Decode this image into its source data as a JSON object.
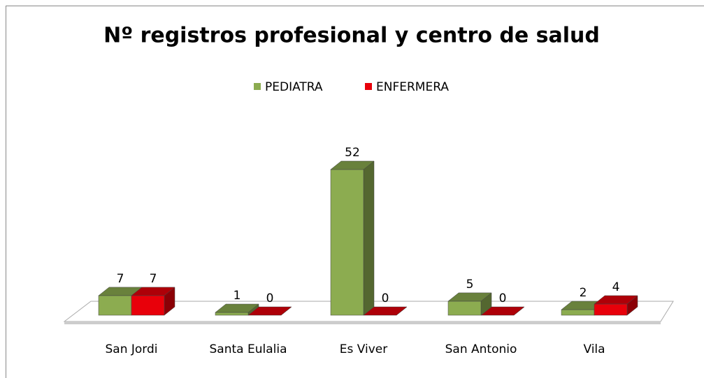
{
  "chart_data": {
    "type": "bar3d",
    "title": "Nº registros profesional y centro de salud",
    "categories": [
      "San Jordi",
      "Santa Eulalia",
      "Es Viver",
      "San Antonio",
      "Vila"
    ],
    "series": [
      {
        "name": "PEDIATRA",
        "color": "#8cac50",
        "values": [
          7,
          1,
          52,
          5,
          2
        ]
      },
      {
        "name": "ENFERMERA",
        "color": "#e8000a",
        "values": [
          7,
          0,
          0,
          0,
          4
        ]
      }
    ],
    "legend": "top"
  }
}
